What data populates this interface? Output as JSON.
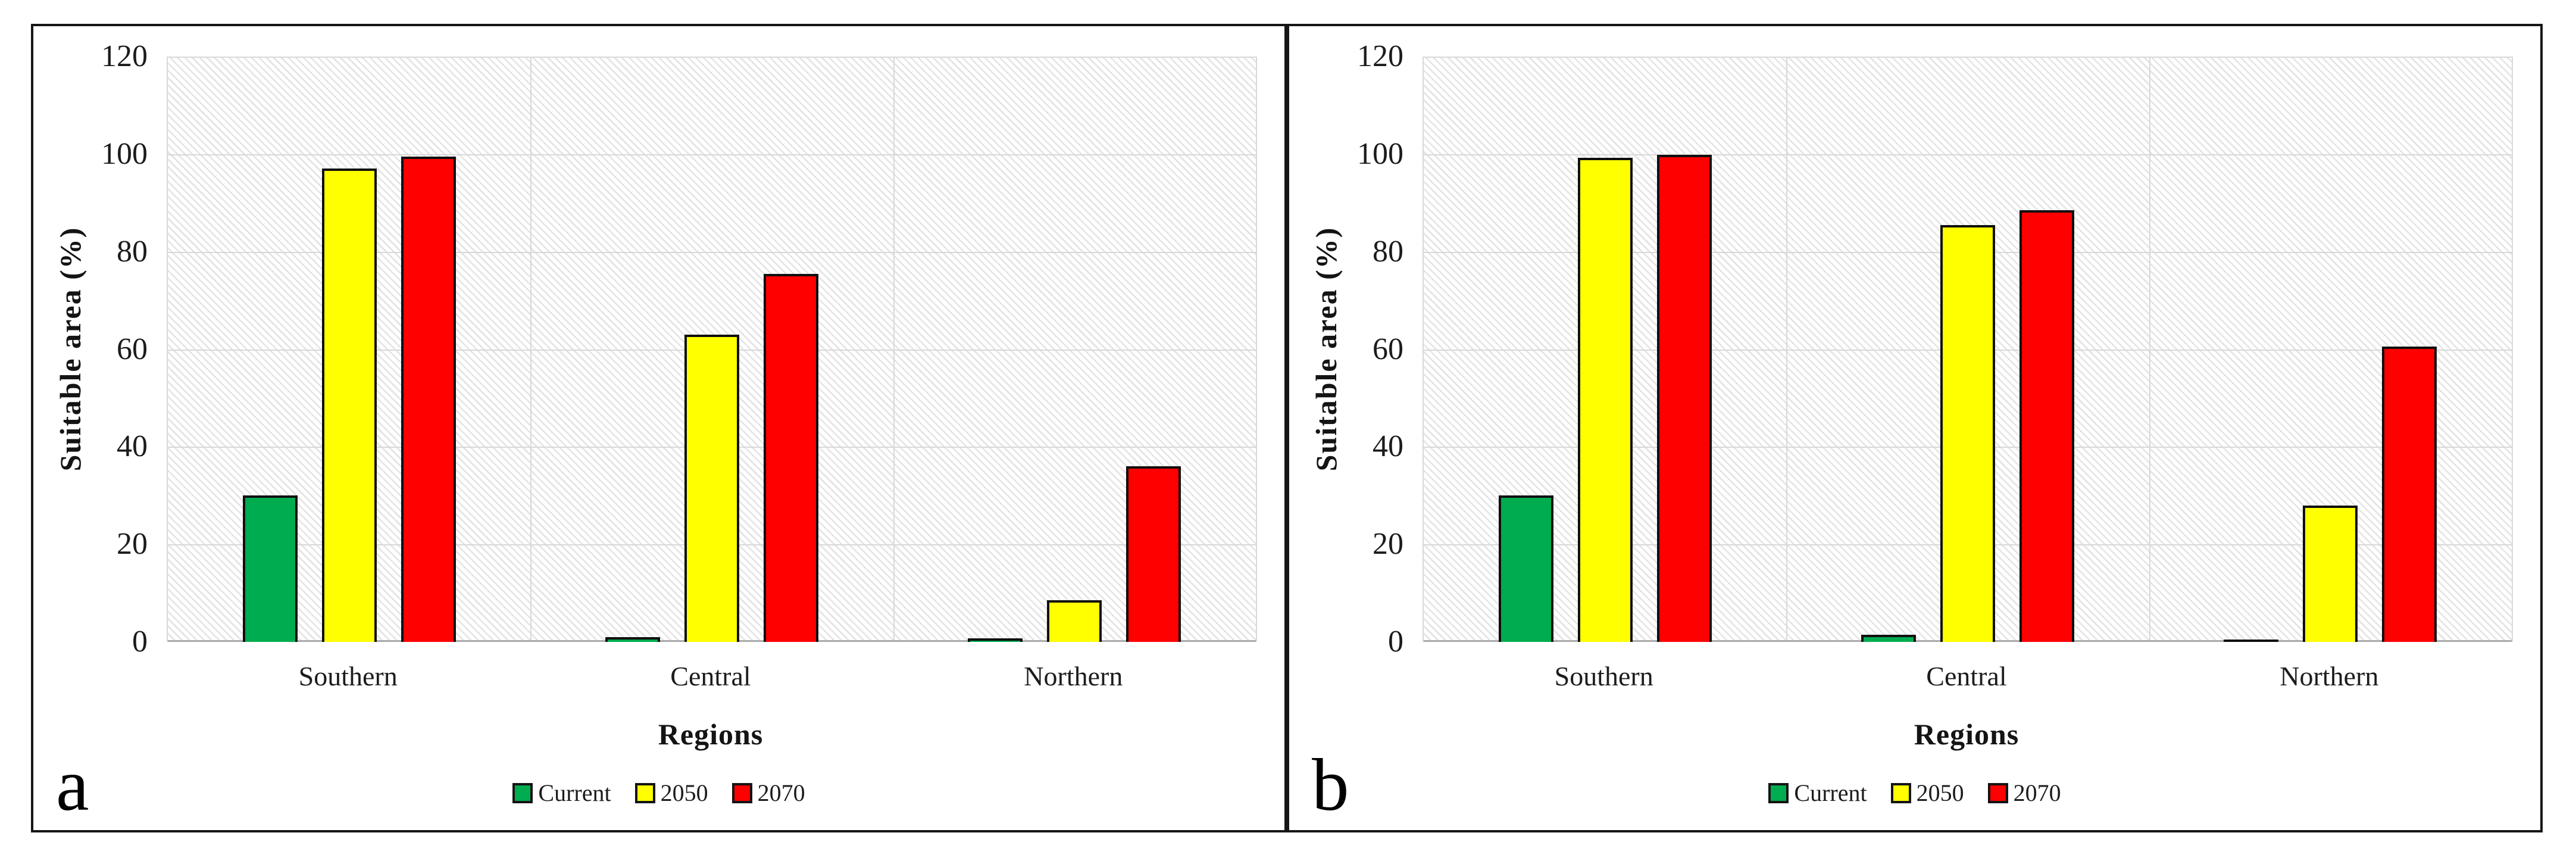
{
  "figure": {
    "background": "#ffffff",
    "panel_border_color": "#161616",
    "gridline_color": "#d8d8d8",
    "bar_border_color": "#0f0f0f",
    "hatch_color": "#e4e4e4"
  },
  "chart_data": [
    {
      "type": "bar",
      "panel_label": "a",
      "title": "",
      "xlabel": "Regions",
      "ylabel": "Suitable area (%)",
      "ylim": [
        0,
        120
      ],
      "ytick_step": 20,
      "grid": true,
      "legend_position": "bottom",
      "categories": [
        "Southern",
        "Central",
        "Northern"
      ],
      "series": [
        {
          "name": "Current",
          "color": "#00AC50",
          "values": [
            30,
            1,
            0.7
          ]
        },
        {
          "name": "2050",
          "color": "#FFFF00",
          "values": [
            97,
            63,
            8.5
          ]
        },
        {
          "name": "2070",
          "color": "#FF0000",
          "values": [
            99.5,
            75.5,
            36
          ]
        }
      ]
    },
    {
      "type": "bar",
      "panel_label": "b",
      "title": "",
      "xlabel": "Regions",
      "ylabel": "Suitable area (%)",
      "ylim": [
        0,
        120
      ],
      "ytick_step": 20,
      "grid": true,
      "legend_position": "bottom",
      "categories": [
        "Southern",
        "Central",
        "Northern"
      ],
      "series": [
        {
          "name": "Current",
          "color": "#00AC50",
          "values": [
            30,
            1.5,
            0.5
          ]
        },
        {
          "name": "2050",
          "color": "#FFFF00",
          "values": [
            99.3,
            85.5,
            28
          ]
        },
        {
          "name": "2070",
          "color": "#FF0000",
          "values": [
            99.8,
            88.5,
            60.5
          ]
        }
      ]
    }
  ]
}
